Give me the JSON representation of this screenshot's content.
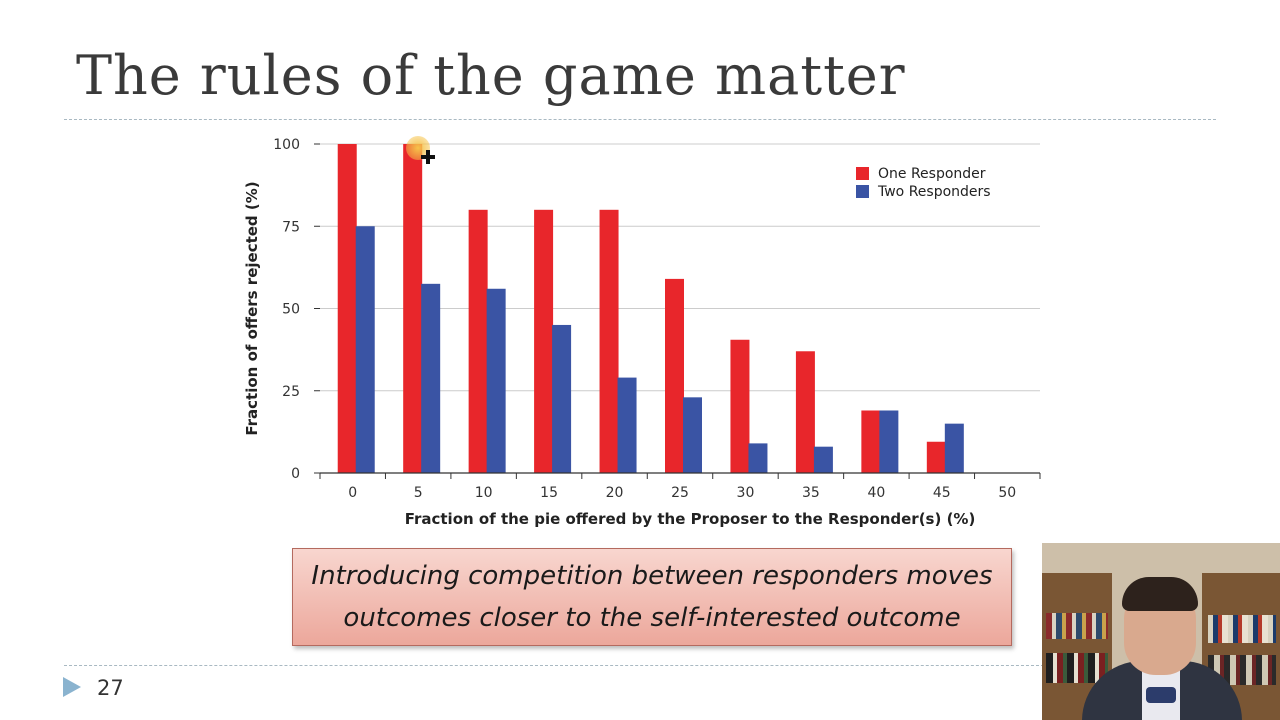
{
  "slide": {
    "title": "The rules of the game matter",
    "page_number": "27",
    "callout": {
      "line1": "Introducing competition between responders moves",
      "line2": "outcomes closer to the self-interested outcome"
    }
  },
  "chart_data": {
    "type": "bar",
    "title": "",
    "xlabel": "Fraction of the pie offered by the Proposer to the Responder(s) (%)",
    "ylabel": "Fraction of offers rejected (%)",
    "categories": [
      "0",
      "5",
      "10",
      "15",
      "20",
      "25",
      "30",
      "35",
      "40",
      "45",
      "50"
    ],
    "yticks": [
      0,
      25,
      50,
      75,
      100
    ],
    "ylim": [
      0,
      100
    ],
    "grid": true,
    "legend_position": "top-right",
    "series": [
      {
        "name": "One Responder",
        "color": "#e8262b",
        "values": [
          100,
          100,
          80,
          80,
          80,
          59,
          40.5,
          37,
          19,
          9.5,
          0
        ]
      },
      {
        "name": "Two Responders",
        "color": "#3a54a4",
        "values": [
          75,
          57.5,
          56,
          45,
          29,
          23,
          9,
          8,
          19,
          15,
          0
        ]
      }
    ]
  },
  "colors": {
    "title": "#3a3a3a",
    "grid": "#cccccc",
    "callout_bg": "#eca79b"
  }
}
